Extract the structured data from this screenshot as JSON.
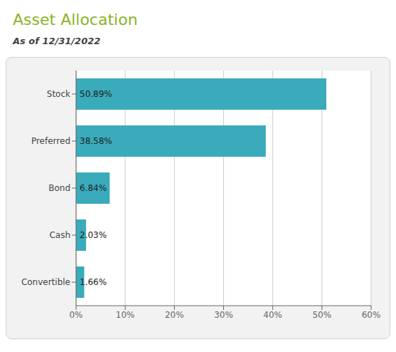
{
  "chart_data": {
    "type": "bar",
    "orientation": "horizontal",
    "title": "Asset Allocation",
    "subtitle": "As of 12/31/2022",
    "categories": [
      "Convertible",
      "Cash",
      "Bond",
      "Preferred",
      "Stock"
    ],
    "values": [
      1.66,
      2.03,
      6.84,
      38.58,
      50.89
    ],
    "value_labels": [
      "1.66%",
      "2.03%",
      "6.84%",
      "38.58%",
      "50.89%"
    ],
    "data_labels": true,
    "color": "#3aabba",
    "xlim": [
      0,
      60
    ],
    "xticks": [
      {
        "value": 0,
        "label": "0%"
      },
      {
        "value": 10,
        "label": "10%"
      },
      {
        "value": 20,
        "label": "20%"
      },
      {
        "value": 30,
        "label": "30%"
      },
      {
        "value": 40,
        "label": "40%"
      },
      {
        "value": 50,
        "label": "50%"
      },
      {
        "value": 60,
        "label": "60%"
      }
    ],
    "grid": true
  }
}
